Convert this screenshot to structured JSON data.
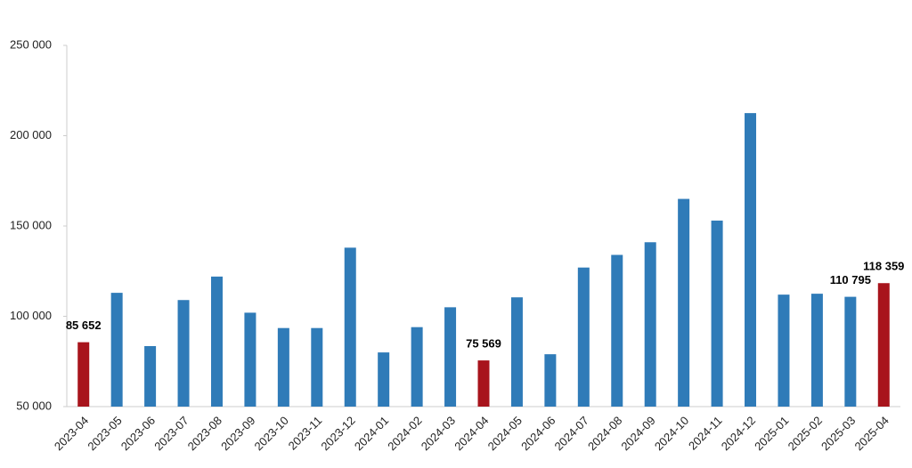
{
  "chart_data": {
    "type": "bar",
    "categories": [
      "2023-04",
      "2023-05",
      "2023-06",
      "2023-07",
      "2023-08",
      "2023-09",
      "2023-10",
      "2023-11",
      "2023-12",
      "2024-01",
      "2024-02",
      "2024-03",
      "2024-04",
      "2024-05",
      "2024-06",
      "2024-07",
      "2024-08",
      "2024-09",
      "2024-10",
      "2024-11",
      "2024-12",
      "2025-01",
      "2025-02",
      "2025-03",
      "2025-04"
    ],
    "values": [
      85652,
      113000,
      83500,
      109000,
      122000,
      102000,
      93500,
      93500,
      138000,
      80000,
      94000,
      105000,
      75569,
      110500,
      79000,
      127000,
      134000,
      141000,
      165000,
      153000,
      212500,
      112000,
      112500,
      110795,
      118359
    ],
    "value_labels": [
      "85 652",
      null,
      null,
      null,
      null,
      null,
      null,
      null,
      null,
      null,
      null,
      null,
      "75 569",
      null,
      null,
      null,
      null,
      null,
      null,
      null,
      null,
      null,
      null,
      "110 795",
      "118 359"
    ],
    "colors": [
      "#a8141c",
      "#2f7bb8",
      "#2f7bb8",
      "#2f7bb8",
      "#2f7bb8",
      "#2f7bb8",
      "#2f7bb8",
      "#2f7bb8",
      "#2f7bb8",
      "#2f7bb8",
      "#2f7bb8",
      "#2f7bb8",
      "#a8141c",
      "#2f7bb8",
      "#2f7bb8",
      "#2f7bb8",
      "#2f7bb8",
      "#2f7bb8",
      "#2f7bb8",
      "#2f7bb8",
      "#2f7bb8",
      "#2f7bb8",
      "#2f7bb8",
      "#2f7bb8",
      "#a8141c"
    ],
    "ylim": [
      50000,
      250000
    ],
    "yticks": [
      {
        "value": 50000,
        "label": "50 000"
      },
      {
        "value": 100000,
        "label": "100 000"
      },
      {
        "value": 150000,
        "label": "150 000"
      },
      {
        "value": 200000,
        "label": "200 000"
      },
      {
        "value": 250000,
        "label": "250 000"
      }
    ],
    "grid": false
  }
}
